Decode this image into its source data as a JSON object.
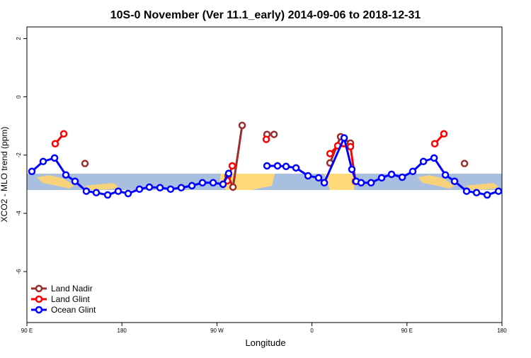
{
  "chart_data": {
    "type": "line",
    "title": "10S-0 November (Ver 11.1_early)   2014-09-06 to 2018-12-31",
    "xlabel": "Longitude",
    "ylabel": "XCO2 - MLO trend (ppm)",
    "xlim": [
      90,
      540
    ],
    "ylim": [
      -7.75,
      2.4
    ],
    "xticks": [
      {
        "value": 90,
        "label": "90 E"
      },
      {
        "value": 180,
        "label": "180"
      },
      {
        "value": 270,
        "label": "90 W"
      },
      {
        "value": 360,
        "label": "0"
      },
      {
        "value": 450,
        "label": "90 E"
      },
      {
        "value": 540,
        "label": "180"
      }
    ],
    "yticks": [
      2,
      0,
      -2,
      -4,
      -6
    ],
    "legend": "bottom-left",
    "series": [
      {
        "name": "Land Nadir",
        "color": "#9b2d2d",
        "x": [
          145.0,
          150,
          280.5,
          285.2,
          293.9,
          300,
          317.4,
          324.1,
          330,
          377.1,
          387.1,
          396.5,
          400,
          504.5
        ],
        "values": [
          -2.29,
          null,
          -2.71,
          -3.1,
          -0.98,
          null,
          -1.29,
          -1.29,
          null,
          -2.27,
          -1.37,
          -1.59,
          null,
          -2.29
        ]
      },
      {
        "name": "Land Glint",
        "color": "#ff0000",
        "x": [
          116.8,
          124.9,
          200,
          279.8,
          284.5,
          300,
          316.7,
          330,
          377.1,
          384.4,
          396.5,
          401.2,
          420,
          476.3,
          485.0
        ],
        "values": [
          -1.61,
          -1.27,
          null,
          -2.88,
          -2.37,
          null,
          -1.46,
          null,
          -1.95,
          -1.68,
          -1.71,
          -2.9,
          null,
          -1.61,
          -1.27
        ]
      },
      {
        "name": "Ocean Glint",
        "color": "#0000ff",
        "x": [
          94.7,
          105.4,
          116.2,
          126.9,
          135.6,
          146.3,
          155.7,
          166.5,
          176.5,
          185.9,
          196.6,
          206.0,
          216.1,
          226.1,
          236.2,
          246.3,
          256.3,
          266.4,
          275.8,
          281.1,
          300,
          317.4,
          327.4,
          335.5,
          344.9,
          356.3,
          366.3,
          371.7,
          390.5,
          397.8,
          401.9,
          406.6,
          416.0,
          426.0,
          435.4,
          445.5,
          455.5,
          465.6,
          475.7,
          486.4,
          495.1,
          506.5,
          515.9,
          526.0,
          536.7
        ],
        "values": [
          -2.56,
          -2.22,
          -2.1,
          -2.68,
          -2.9,
          -3.24,
          -3.29,
          -3.37,
          -3.24,
          -3.32,
          -3.17,
          -3.1,
          -3.12,
          -3.17,
          -3.12,
          -3.05,
          -2.95,
          -2.95,
          -3.0,
          -2.63,
          null,
          -2.37,
          -2.37,
          -2.39,
          -2.44,
          -2.71,
          -2.78,
          -2.95,
          -1.41,
          -2.49,
          -2.9,
          -2.95,
          -2.95,
          -2.78,
          -2.66,
          -2.76,
          -2.56,
          -2.22,
          -2.1,
          -2.68,
          -2.9,
          -3.24,
          -3.29,
          -3.37,
          -3.24
        ]
      }
    ]
  }
}
